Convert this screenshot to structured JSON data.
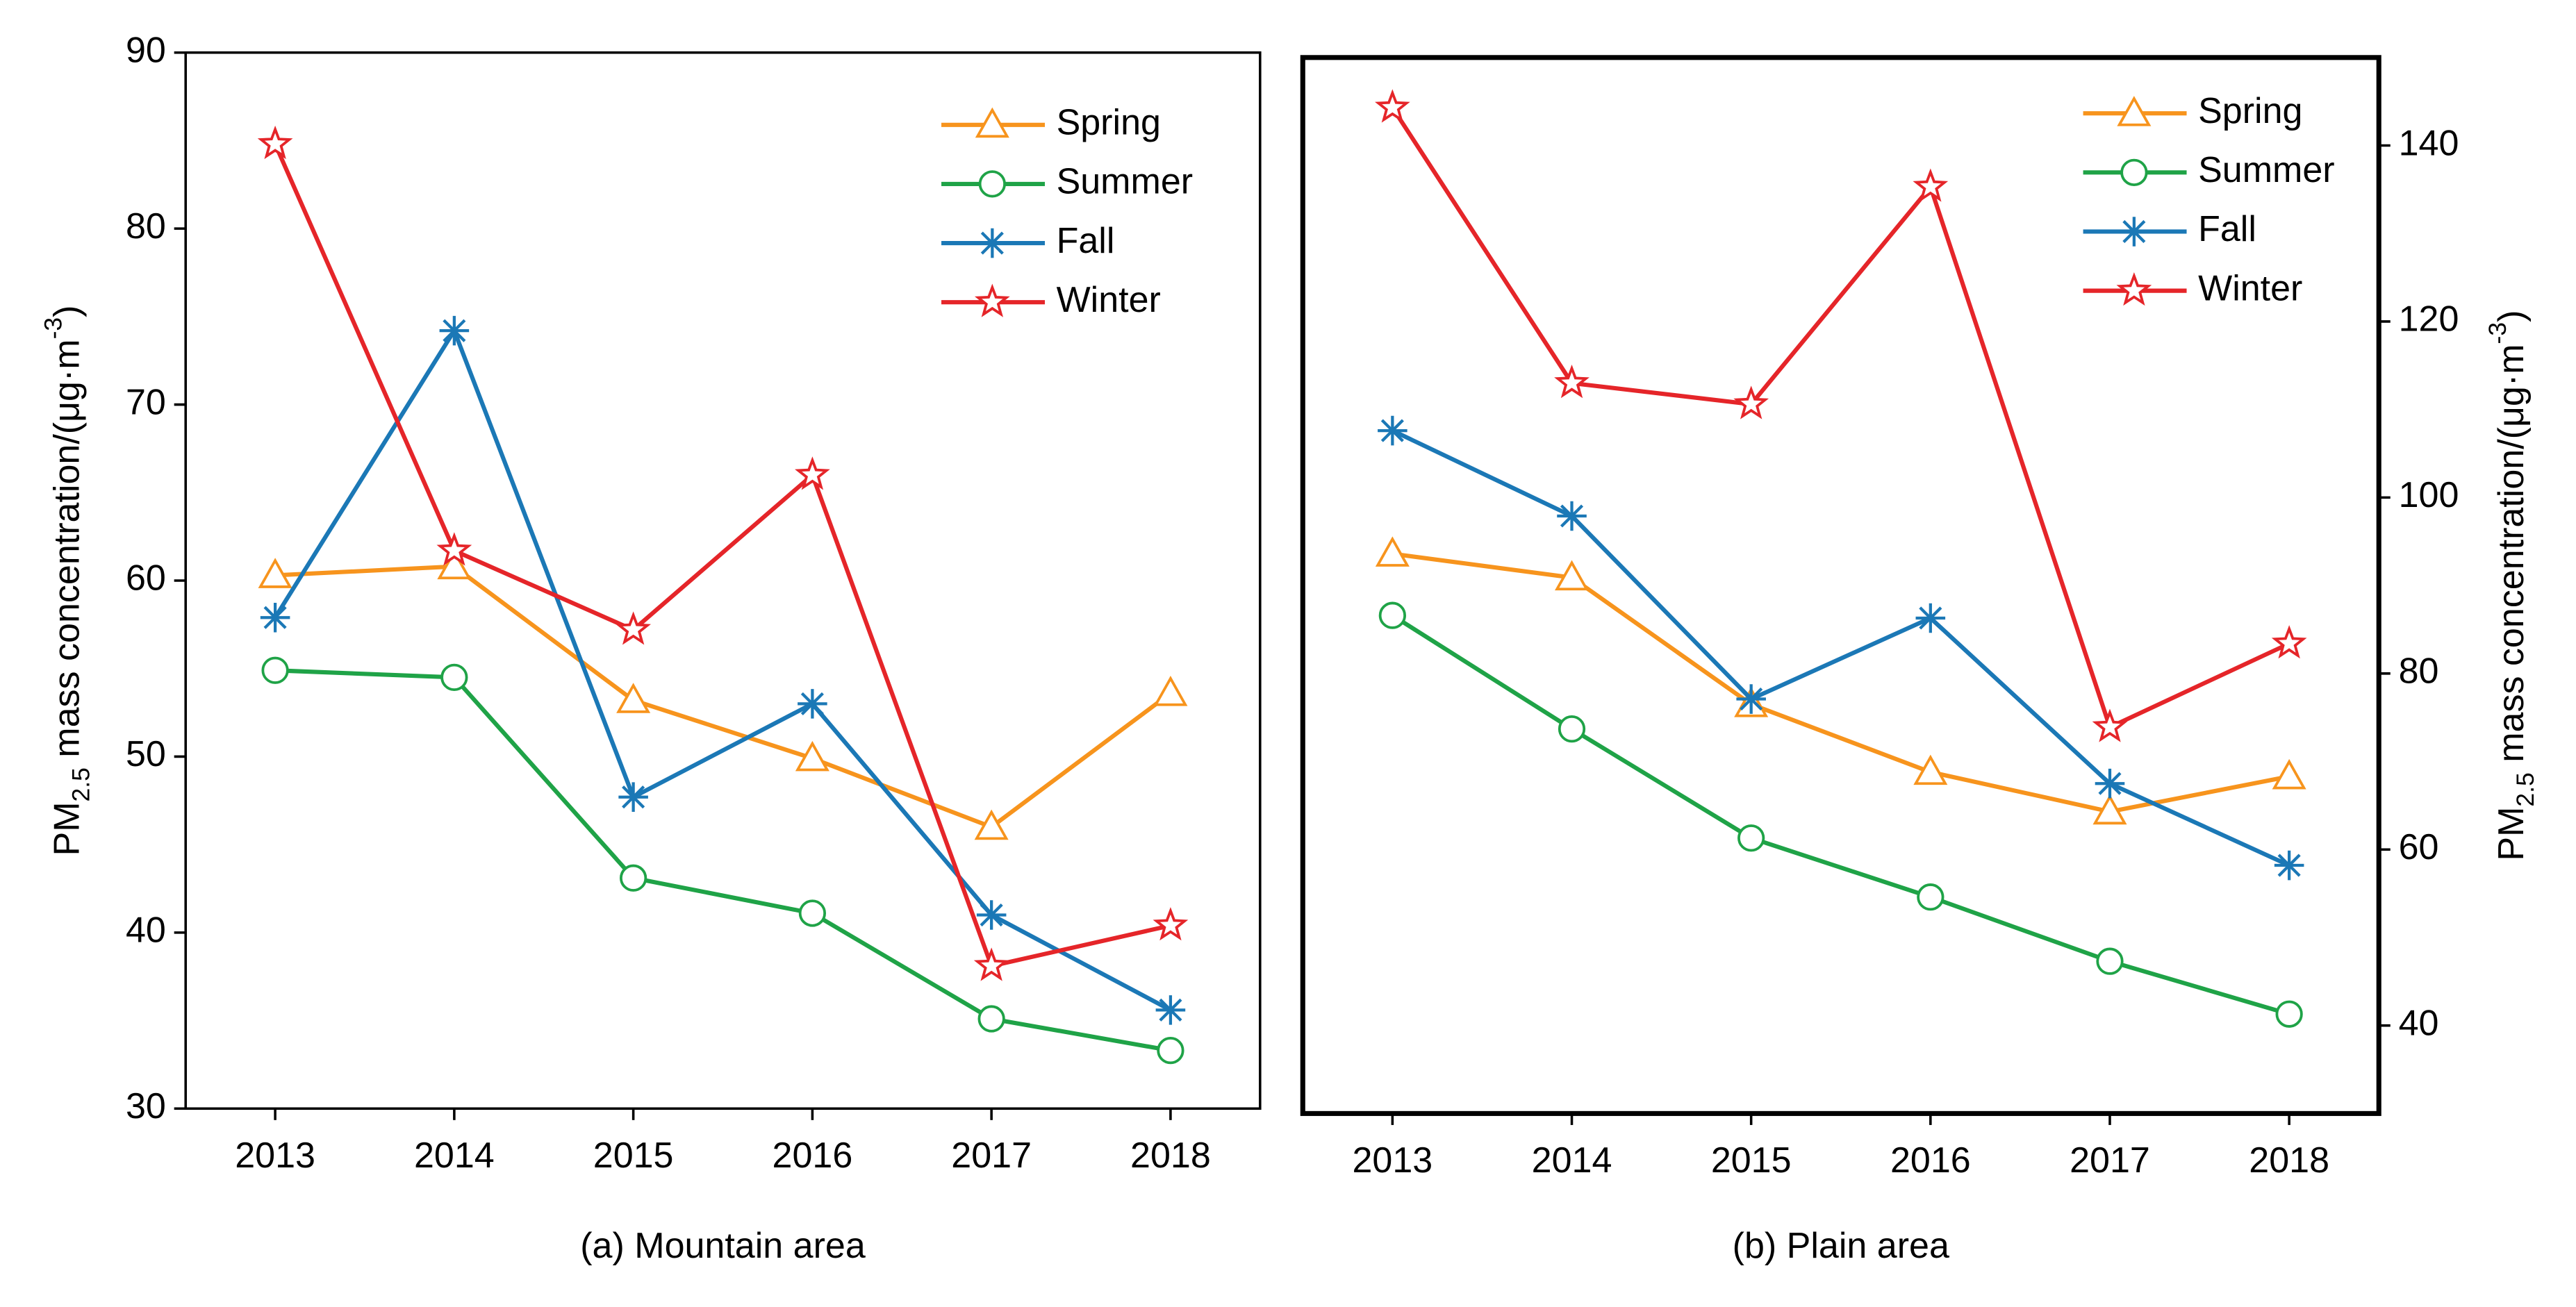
{
  "chart_data": [
    {
      "type": "line",
      "ylabel_parts": [
        "PM",
        "2.5",
        " mass concentration/(μg·m",
        "-3",
        ")"
      ],
      "caption": "(a) Mountain area",
      "categories": [
        "2013",
        "2014",
        "2015",
        "2016",
        "2017",
        "2018"
      ],
      "ylim": [
        30,
        90
      ],
      "yticks": [
        30,
        40,
        50,
        60,
        70,
        80,
        90
      ],
      "yaxis_side": "left",
      "legend": "upper right",
      "series": [
        {
          "name": "Spring",
          "color": "#f7941d",
          "marker": "triangle",
          "values": [
            60.3,
            60.8,
            53.2,
            49.9,
            46.0,
            53.6
          ]
        },
        {
          "name": "Summer",
          "color": "#1fa347",
          "marker": "circle",
          "values": [
            54.9,
            54.5,
            43.1,
            41.1,
            35.1,
            33.3
          ]
        },
        {
          "name": "Fall",
          "color": "#1b78b6",
          "marker": "asterisk",
          "values": [
            57.9,
            74.2,
            47.7,
            53.0,
            41.0,
            35.6
          ]
        },
        {
          "name": "Winter",
          "color": "#e52529",
          "marker": "star",
          "values": [
            84.8,
            61.7,
            57.2,
            66.0,
            38.1,
            40.4
          ]
        }
      ]
    },
    {
      "type": "line",
      "ylabel_parts": [
        "PM",
        "2.5",
        " mass concentration/(μg·m",
        "-3",
        ")"
      ],
      "caption": "(b) Plain area",
      "categories": [
        "2013",
        "2014",
        "2015",
        "2016",
        "2017",
        "2018"
      ],
      "ylim": [
        30,
        150
      ],
      "yticks": [
        40,
        60,
        80,
        100,
        120,
        140
      ],
      "yaxis_side": "right",
      "legend": "upper right",
      "series": [
        {
          "name": "Spring",
          "color": "#f7941d",
          "marker": "triangle",
          "values": [
            93.6,
            90.9,
            76.5,
            68.8,
            64.3,
            68.3
          ]
        },
        {
          "name": "Summer",
          "color": "#1fa347",
          "marker": "circle",
          "values": [
            86.6,
            73.7,
            61.3,
            54.6,
            47.3,
            41.3
          ]
        },
        {
          "name": "Fall",
          "color": "#1b78b6",
          "marker": "asterisk",
          "values": [
            107.6,
            97.9,
            77.1,
            86.3,
            67.5,
            58.2
          ]
        },
        {
          "name": "Winter",
          "color": "#e52529",
          "marker": "star",
          "values": [
            144.3,
            113.0,
            110.6,
            135.3,
            73.9,
            83.4
          ]
        }
      ]
    }
  ]
}
